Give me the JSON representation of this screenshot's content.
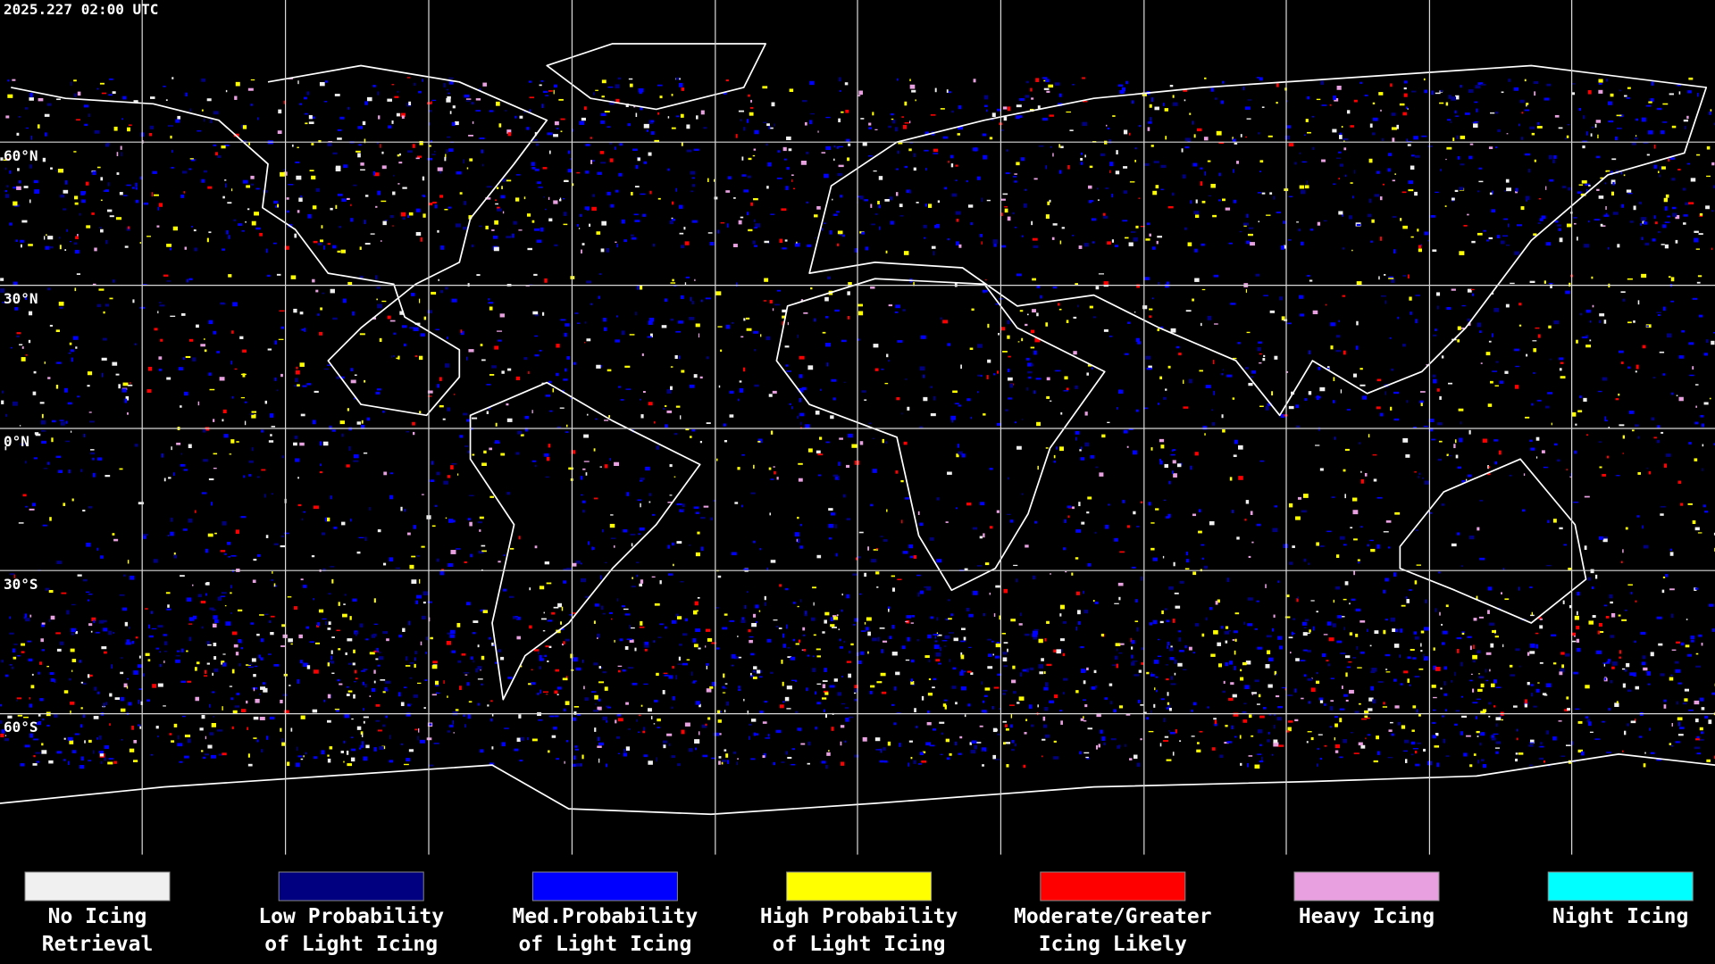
{
  "header": {
    "timestamp": "2025.227 02:00 UTC"
  },
  "map": {
    "latitude_labels": [
      "60°N",
      "30°N",
      "0°N",
      "30°S",
      "60°S"
    ]
  },
  "legend": {
    "items": [
      {
        "label_lines": [
          "No Icing",
          "Retrieval"
        ],
        "color": "#f0f0f0"
      },
      {
        "label_lines": [
          "Low Probability",
          "of Light Icing"
        ],
        "color": "#000080"
      },
      {
        "label_lines": [
          "Med.Probability",
          "of Light Icing"
        ],
        "color": "#0000ff"
      },
      {
        "label_lines": [
          "High Probability",
          "of Light Icing"
        ],
        "color": "#ffff00"
      },
      {
        "label_lines": [
          "Moderate/Greater",
          "Icing Likely"
        ],
        "color": "#ff0000"
      },
      {
        "label_lines": [
          "Heavy Icing"
        ],
        "color": "#e8a0e0"
      },
      {
        "label_lines": [
          "Night Icing"
        ],
        "color": "#00ffff"
      }
    ]
  }
}
